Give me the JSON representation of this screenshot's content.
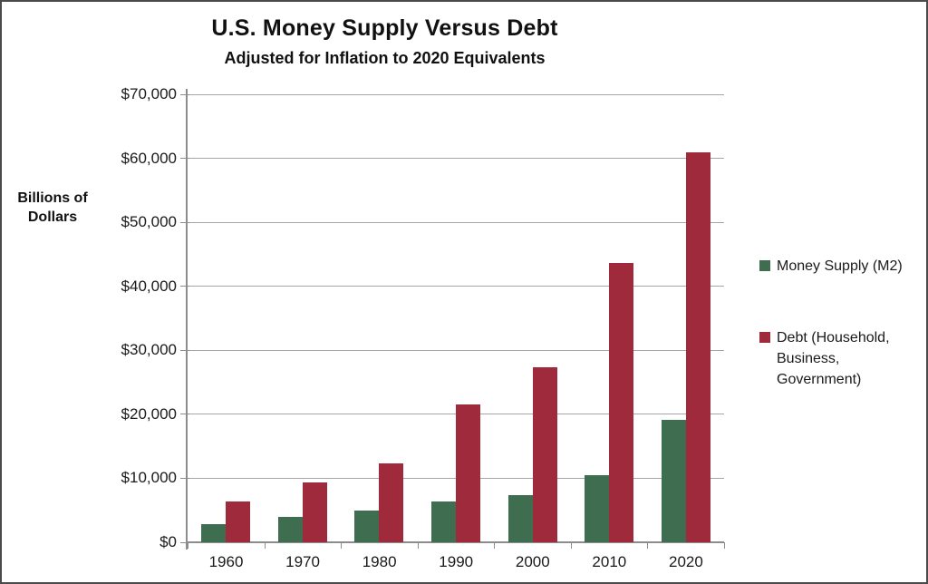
{
  "chart": {
    "title": "U.S. Money Supply Versus Debt",
    "subtitle": "Adjusted for Inflation to 2020 Equivalents",
    "y_axis_title": "Billions of Dollars"
  },
  "chart_data": {
    "type": "bar",
    "title": "U.S. Money Supply Versus Debt",
    "subtitle": "Adjusted for Inflation to 2020 Equivalents",
    "ylabel": "Billions of Dollars",
    "xlabel": "",
    "categories": [
      "1960",
      "1970",
      "1980",
      "1990",
      "2000",
      "2010",
      "2020"
    ],
    "series": [
      {
        "name": "Money Supply (M2)",
        "color": "#3e6e4f",
        "values": [
          2800,
          4000,
          4900,
          6400,
          7300,
          10500,
          19200
        ]
      },
      {
        "name": "Debt (Household, Business, Government)",
        "color": "#9e2a3c",
        "values": [
          6400,
          9400,
          12300,
          21500,
          27400,
          43700,
          61000
        ]
      }
    ],
    "ylim": [
      0,
      70000
    ],
    "ytick_step": 10000,
    "ytick_labels": [
      "$0",
      "$10,000",
      "$20,000",
      "$30,000",
      "$40,000",
      "$50,000",
      "$60,000",
      "$70,000"
    ],
    "grid": true,
    "legend_position": "right",
    "colors": {
      "gridline": "#a6a6a6",
      "axis": "#8c8c8c",
      "text": "#1a1a1a"
    }
  }
}
